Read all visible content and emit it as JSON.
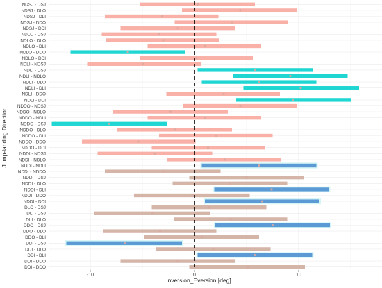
{
  "chart_data": {
    "type": "interval",
    "title": "",
    "xlabel": "Inversion_Eversion [deg]",
    "ylabel": "Jump-landing Direction",
    "xlim": [
      -14,
      18
    ],
    "x_ticks": [
      -10,
      0,
      10
    ],
    "grid": true,
    "reference_line": {
      "x": 0,
      "style": "dashed"
    },
    "rows": [
      {
        "label": "NDSJ - DSJ",
        "low": -5.2,
        "high": 5.8,
        "mean": 0.3,
        "color": "#f8b0a7"
      },
      {
        "label": "NDSJ - DLO",
        "low": -1.2,
        "high": 9.8,
        "mean": 4.4,
        "color": "#f8b0a7"
      },
      {
        "label": "NDSJ - DLI",
        "low": -8.6,
        "high": 2.3,
        "mean": -3.1,
        "color": "#f8b0a7"
      },
      {
        "label": "NDSJ - DDO",
        "low": -1.9,
        "high": 9.0,
        "mean": 3.6,
        "color": "#f8b0a7"
      },
      {
        "label": "NDSJ - DDI",
        "low": -7.1,
        "high": 3.9,
        "mean": -1.6,
        "color": "#f8b0a7"
      },
      {
        "label": "NDLO - DSJ",
        "low": -8.9,
        "high": 2.1,
        "mean": -3.4,
        "color": "#f8b0a7"
      },
      {
        "label": "NDLO - DLO",
        "low": -8.5,
        "high": 2.4,
        "mean": -3.0,
        "color": "#f8b0a7"
      },
      {
        "label": "NDLO - DLI",
        "low": -4.5,
        "high": 6.4,
        "mean": 1.0,
        "color": "#f8b0a7"
      },
      {
        "label": "NDLO - DDO",
        "low": -11.9,
        "high": -0.9,
        "mean": -6.4,
        "color": "#1fd6d2"
      },
      {
        "label": "NDLO - DDI",
        "low": -5.2,
        "high": 5.6,
        "mean": 0.2,
        "color": "#f8b0a7"
      },
      {
        "label": "NDLI - NDSJ",
        "low": -10.3,
        "high": 0.6,
        "mean": -4.9,
        "color": "#f8b0a7"
      },
      {
        "label": "NDLI - DSJ",
        "low": 0.3,
        "high": 11.4,
        "mean": 5.8,
        "color": "#1fd6d2"
      },
      {
        "label": "NDLI - NDLO",
        "low": 3.7,
        "high": 14.7,
        "mean": 9.2,
        "color": "#1fd6d2"
      },
      {
        "label": "NDLI - DLO",
        "low": 0.7,
        "high": 11.7,
        "mean": 6.2,
        "color": "#1fd6d2"
      },
      {
        "label": "NDLI - DLI",
        "low": 4.7,
        "high": 15.8,
        "mean": 10.2,
        "color": "#1fd6d2"
      },
      {
        "label": "NDLI - DDO",
        "low": -2.7,
        "high": 8.2,
        "mean": 2.8,
        "color": "#f8b0a7"
      },
      {
        "label": "NDLI - DDI",
        "low": 4.0,
        "high": 15.0,
        "mean": 9.5,
        "color": "#1fd6d2"
      },
      {
        "label": "NDDO - NDSJ",
        "low": -1.1,
        "high": 9.8,
        "mean": 4.4,
        "color": "#f8b0a7"
      },
      {
        "label": "NDDO - NDLO",
        "low": -7.8,
        "high": 3.2,
        "mean": -2.3,
        "color": "#f8b0a7"
      },
      {
        "label": "NDDO - NDLI",
        "low": -4.5,
        "high": 6.4,
        "mean": 1.0,
        "color": "#f8b0a7"
      },
      {
        "label": "NDDO - DSJ",
        "low": -13.7,
        "high": -2.6,
        "mean": -8.2,
        "color": "#1fd6d2"
      },
      {
        "label": "NDDO - DLO",
        "low": -7.4,
        "high": 3.6,
        "mean": -1.9,
        "color": "#f8b0a7"
      },
      {
        "label": "NDDO - DLI",
        "low": -3.4,
        "high": 7.5,
        "mean": 2.1,
        "color": "#f8b0a7"
      },
      {
        "label": "NDDO - DDO",
        "low": -10.8,
        "high": 0.1,
        "mean": -5.4,
        "color": "#f8b0a7"
      },
      {
        "label": "NDDO - DDI",
        "low": -4.1,
        "high": 6.8,
        "mean": 1.3,
        "color": "#f8b0a7"
      },
      {
        "label": "NDDI - NDSJ",
        "low": -9.3,
        "high": 1.7,
        "mean": -3.8,
        "color": "#f8b0a7"
      },
      {
        "label": "NDDI - NDLO",
        "low": -2.6,
        "high": 8.3,
        "mean": 2.9,
        "color": "#f8b0a7"
      },
      {
        "label": "NDDI - NDLI",
        "low": 0.7,
        "high": 11.7,
        "mean": 6.2,
        "color": "#5b9ad5"
      },
      {
        "label": "NDDI - NDDO",
        "low": -8.6,
        "high": 2.5,
        "mean": -3.0,
        "color": "#d4b5a8"
      },
      {
        "label": "NDDI - DSJ",
        "low": -0.5,
        "high": 10.5,
        "mean": 5.0,
        "color": "#d4b5a8"
      },
      {
        "label": "NDDI - DLO",
        "low": -2.1,
        "high": 8.9,
        "mean": 3.4,
        "color": "#d4b5a8"
      },
      {
        "label": "NDDI - DLI",
        "low": 1.9,
        "high": 12.9,
        "mean": 7.4,
        "color": "#5b9ad5"
      },
      {
        "label": "NDDI - DDO",
        "low": -5.8,
        "high": 5.3,
        "mean": -0.2,
        "color": "#d4b5a8"
      },
      {
        "label": "NDDI - DDI",
        "low": 1.0,
        "high": 12.0,
        "mean": 6.5,
        "color": "#5b9ad5"
      },
      {
        "label": "DLO - DSJ",
        "low": -4.1,
        "high": 6.9,
        "mean": 1.4,
        "color": "#d4b5a8"
      },
      {
        "label": "DLI - DSJ",
        "low": -9.6,
        "high": 1.5,
        "mean": -4.0,
        "color": "#d4b5a8"
      },
      {
        "label": "DLI - DLO",
        "low": -2.0,
        "high": 8.9,
        "mean": 3.5,
        "color": "#d4b5a8"
      },
      {
        "label": "DDO - DSJ",
        "low": 2.0,
        "high": 13.0,
        "mean": 7.5,
        "color": "#5b9ad5"
      },
      {
        "label": "DDO - DLO",
        "low": -8.8,
        "high": 2.1,
        "mean": -3.3,
        "color": "#d4b5a8"
      },
      {
        "label": "DDO - DLI",
        "low": -4.8,
        "high": 6.2,
        "mean": 0.7,
        "color": "#d4b5a8"
      },
      {
        "label": "DDI - DSJ",
        "low": -12.3,
        "high": -1.2,
        "mean": -6.7,
        "color": "#5b9ad5"
      },
      {
        "label": "DDI - DLO",
        "low": -3.7,
        "high": 7.3,
        "mean": 1.8,
        "color": "#d4b5a8"
      },
      {
        "label": "DDI - DLI",
        "low": 0.3,
        "high": 11.3,
        "mean": 5.8,
        "color": "#5b9ad5"
      },
      {
        "label": "DDI - DDO",
        "low": -7.1,
        "high": 3.9,
        "mean": -1.6,
        "color": "#d4b5a8"
      },
      {
        "label": "DDI - DDO",
        "low": -0.5,
        "high": 10.6,
        "mean": 5.1,
        "color": "#d4b5a8"
      }
    ]
  },
  "colors": {
    "background": "#ffffff",
    "grid": "#ebebeb",
    "reference_line": "#000000",
    "mean_point": "#d9a9a0"
  }
}
